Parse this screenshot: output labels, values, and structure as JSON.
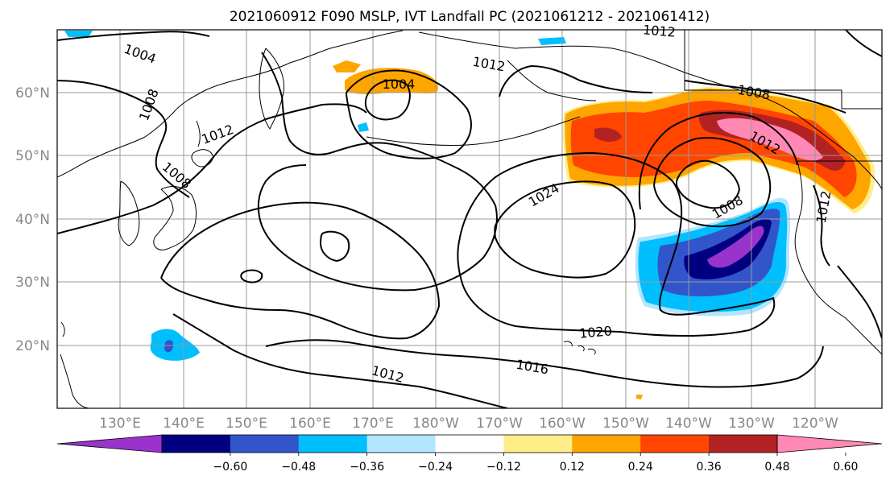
{
  "title": "2021060912 F090 MSLP, IVT Landfall PC (2021061212 - 2021061412)",
  "map": {
    "lat_labels": [
      "60°N",
      "50°N",
      "40°N",
      "30°N",
      "20°N"
    ],
    "lon_labels": [
      "130°E",
      "140°E",
      "150°E",
      "160°E",
      "170°E",
      "180°W",
      "170°W",
      "160°W",
      "150°W",
      "140°W",
      "130°W",
      "120°W"
    ],
    "isobar_labels": [
      "1004",
      "1008",
      "1012",
      "1004",
      "1012",
      "1012",
      "1008",
      "1024",
      "1008",
      "1012",
      "1020",
      "1016",
      "1012",
      "1012",
      "1008"
    ]
  },
  "colorbar": {
    "tick_labels": [
      "−0.60",
      "−0.48",
      "−0.36",
      "−0.24",
      "−0.12",
      "0.12",
      "0.24",
      "0.36",
      "0.48",
      "0.60"
    ],
    "colors": {
      "under": "#9933cc",
      "bins": [
        "#9933cc",
        "#000080",
        "#3355cc",
        "#00bfff",
        "#b3e5ff",
        "#ffffff",
        "#ffee88",
        "#ffa500",
        "#ff4500",
        "#b22222",
        "#ff88b4"
      ],
      "over": "#ff88b4"
    }
  }
}
